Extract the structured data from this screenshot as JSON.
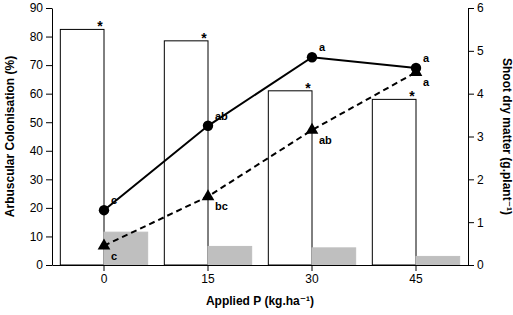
{
  "chart_data": {
    "type": "bar",
    "categories": [
      "0",
      "15",
      "30",
      "45"
    ],
    "x_label": "Applied P (kg.ha⁻¹)",
    "y_label": "Arbuscular Colonisation (%)",
    "y2_label": "Shoot dry matter (g.plant⁻¹)",
    "ylim": [
      0,
      90
    ],
    "yticks": [
      0,
      10,
      20,
      30,
      40,
      50,
      60,
      70,
      80,
      90
    ],
    "y2lim": [
      0,
      6
    ],
    "y2ticks": [
      0,
      1,
      2,
      3,
      4,
      5,
      6
    ],
    "series": [
      {
        "type": "bar",
        "color": "#ffffff",
        "values": [
          82.5,
          78.5,
          61,
          58
        ],
        "annotations": [
          "*",
          "*",
          "*",
          "*"
        ]
      },
      {
        "type": "bar",
        "color": "#bfbfbf",
        "values": [
          11.5,
          6.5,
          6,
          3
        ]
      },
      {
        "type": "line",
        "axis": "y2",
        "color": "#000000",
        "marker": "circle",
        "line_style": "solid",
        "values": [
          1.28,
          3.25,
          4.85,
          4.6
        ],
        "annotations": [
          "c",
          "ab",
          "a",
          "a"
        ]
      },
      {
        "type": "line",
        "axis": "y2",
        "color": "#000000",
        "marker": "triangle",
        "line_style": "dashed",
        "values": [
          0.45,
          1.6,
          3.15,
          4.5
        ],
        "annotations": [
          "c",
          "bc",
          "ab",
          "a"
        ]
      }
    ]
  }
}
